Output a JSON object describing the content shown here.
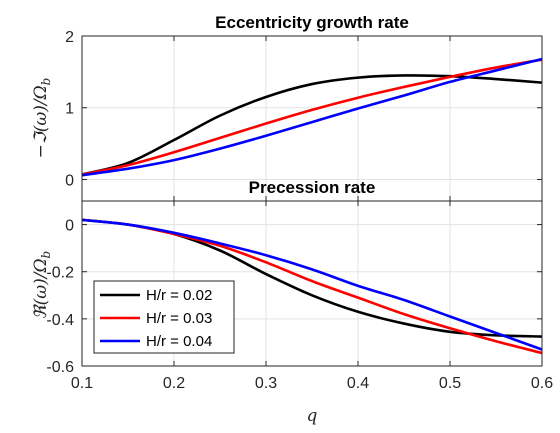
{
  "chart_data": [
    {
      "type": "line",
      "title": "Eccentricity growth rate",
      "xlabel": "",
      "ylabel": "−ℑ(ω)/Ω_b",
      "xlim": [
        0.1,
        0.6
      ],
      "ylim": [
        -0.3,
        2
      ],
      "grid": true,
      "x": [
        0.1,
        0.15,
        0.2,
        0.25,
        0.3,
        0.35,
        0.4,
        0.45,
        0.5,
        0.55,
        0.6
      ],
      "x_ticks": [
        "0.1",
        "0.2",
        "0.3",
        "0.4",
        "0.5",
        "0.6"
      ],
      "y_ticks": [
        "0",
        "1",
        "2"
      ],
      "series": [
        {
          "name": "H/r = 0.02",
          "color": "#000000",
          "values": [
            0.07,
            0.23,
            0.55,
            0.89,
            1.15,
            1.33,
            1.42,
            1.45,
            1.44,
            1.4,
            1.35
          ]
        },
        {
          "name": "H/r = 0.03",
          "color": "#ff0000",
          "values": [
            0.07,
            0.2,
            0.38,
            0.58,
            0.78,
            0.97,
            1.14,
            1.29,
            1.43,
            1.56,
            1.67
          ]
        },
        {
          "name": "H/r = 0.04",
          "color": "#0000ff",
          "values": [
            0.06,
            0.15,
            0.27,
            0.43,
            0.61,
            0.8,
            0.99,
            1.17,
            1.36,
            1.52,
            1.68
          ]
        }
      ]
    },
    {
      "type": "line",
      "title": "Precession rate",
      "xlabel": "q",
      "ylabel": "ℜ(ω)/Ω_b",
      "xlim": [
        0.1,
        0.6
      ],
      "ylim": [
        -0.6,
        0.1
      ],
      "grid": true,
      "legend_position": "bottom-left",
      "x": [
        0.1,
        0.15,
        0.2,
        0.25,
        0.3,
        0.35,
        0.4,
        0.45,
        0.5,
        0.55,
        0.6
      ],
      "x_ticks": [
        "0.1",
        "0.2",
        "0.3",
        "0.4",
        "0.5",
        "0.6"
      ],
      "y_ticks": [
        "0",
        "-0.2",
        "-0.4",
        "-0.6"
      ],
      "series": [
        {
          "name": "H/r = 0.02",
          "color": "#000000",
          "values": [
            0.02,
            0.0,
            -0.04,
            -0.11,
            -0.21,
            -0.3,
            -0.37,
            -0.42,
            -0.455,
            -0.47,
            -0.475
          ]
        },
        {
          "name": "H/r = 0.03",
          "color": "#ff0000",
          "values": [
            0.02,
            0.0,
            -0.04,
            -0.09,
            -0.16,
            -0.24,
            -0.31,
            -0.38,
            -0.44,
            -0.495,
            -0.545
          ]
        },
        {
          "name": "H/r = 0.04",
          "color": "#0000ff",
          "values": [
            0.02,
            0.0,
            -0.035,
            -0.08,
            -0.13,
            -0.19,
            -0.26,
            -0.32,
            -0.39,
            -0.46,
            -0.53
          ]
        }
      ]
    }
  ]
}
